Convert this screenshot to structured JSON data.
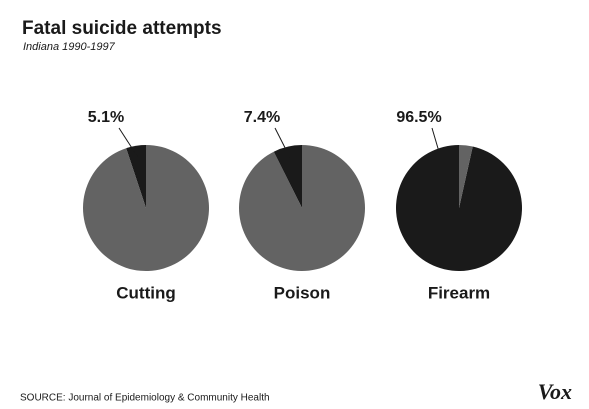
{
  "title": "Fatal suicide attempts",
  "subtitle": "Indiana 1990-1997",
  "source": "SOURCE: Journal of Epidemiology & Community Health",
  "logo": "Vox",
  "chart_data": [
    {
      "type": "pie",
      "title": "Cutting",
      "values": [
        5.1,
        94.9
      ],
      "value_labels": [
        "5.1%",
        null
      ],
      "colors": [
        "#1a1a1a",
        "#636363"
      ]
    },
    {
      "type": "pie",
      "title": "Poison",
      "values": [
        7.4,
        92.6
      ],
      "value_labels": [
        "7.4%",
        null
      ],
      "colors": [
        "#1a1a1a",
        "#636363"
      ]
    },
    {
      "type": "pie",
      "title": "Firearm",
      "values": [
        96.5,
        3.5
      ],
      "value_labels": [
        "96.5%",
        null
      ],
      "colors": [
        "#1a1a1a",
        "#636363"
      ]
    }
  ]
}
